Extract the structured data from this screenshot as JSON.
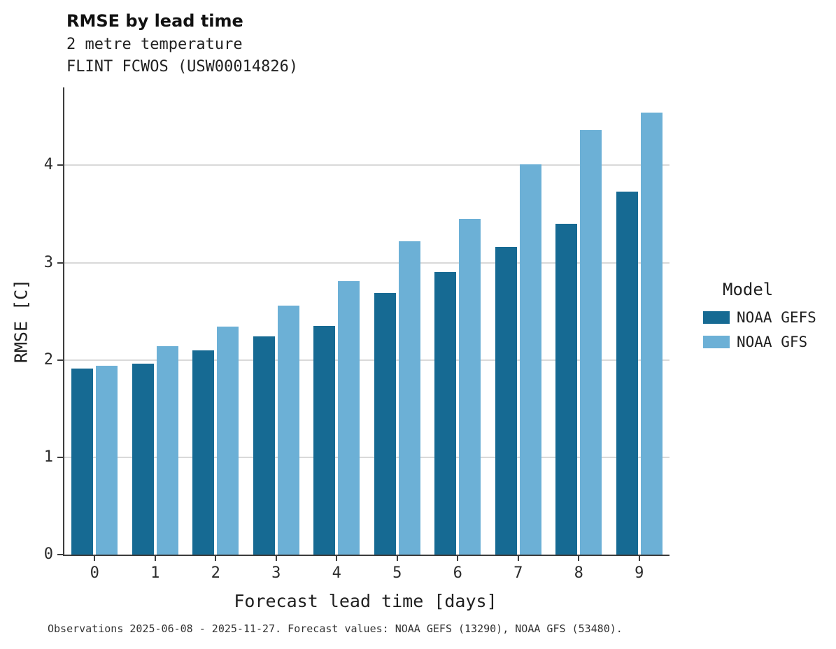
{
  "title": "RMSE by lead time",
  "subtitle_lines": [
    "2 metre temperature",
    "FLINT FCWOS (USW00014826)"
  ],
  "caption": "Observations 2025-06-08 - 2025-11-27. Forecast values: NOAA GEFS (13290), NOAA GFS (53480).",
  "legend": {
    "title": "Model",
    "entries": [
      {
        "label": "NOAA GEFS",
        "color": "#166a93"
      },
      {
        "label": "NOAA GFS",
        "color": "#6cb0d6"
      }
    ]
  },
  "chart_data": {
    "type": "bar",
    "title": "RMSE by lead time",
    "subtitle": "2 metre temperature — FLINT FCWOS (USW00014826)",
    "xlabel": "Forecast lead time [days]",
    "ylabel": "RMSE [C]",
    "categories": [
      "0",
      "1",
      "2",
      "3",
      "4",
      "5",
      "6",
      "7",
      "8",
      "9"
    ],
    "series": [
      {
        "name": "NOAA GEFS",
        "color": "#166a93",
        "values": [
          1.91,
          1.96,
          2.1,
          2.24,
          2.35,
          2.69,
          2.9,
          3.16,
          3.4,
          3.73
        ]
      },
      {
        "name": "NOAA GFS",
        "color": "#6cb0d6",
        "values": [
          1.94,
          2.14,
          2.34,
          2.56,
          2.81,
          3.22,
          3.45,
          4.01,
          4.36,
          4.54
        ]
      }
    ],
    "ylim": [
      0,
      4.8
    ],
    "yticks": [
      0,
      1,
      2,
      3,
      4
    ],
    "grid": true,
    "legend_position": "right"
  }
}
